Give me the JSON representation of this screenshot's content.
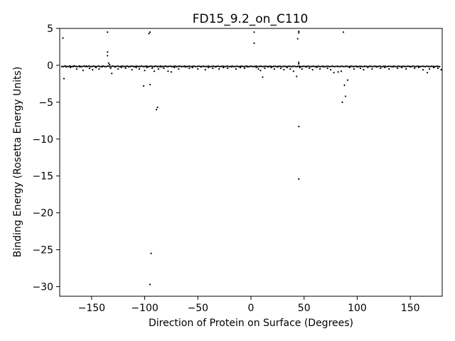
{
  "chart_data": {
    "type": "scatter",
    "title": "FD15_9.2_on_C110",
    "xlabel": "Direction of Protein on Surface (Degrees)",
    "ylabel": "Binding Energy (Rosetta Energy Units)",
    "xlim": [
      -180,
      180
    ],
    "ylim": [
      -31.3,
      5.0
    ],
    "xticks": [
      -150,
      -100,
      -50,
      0,
      50,
      100,
      150
    ],
    "yticks": [
      5,
      0,
      -5,
      -10,
      -15,
      -20,
      -25,
      -30
    ],
    "grid": false,
    "legend": "none",
    "marker_color": "#000000",
    "series": [
      {
        "points": [
          [
            -177,
            3.7
          ],
          [
            -176,
            -1.8
          ],
          [
            -174,
            -0.2
          ],
          [
            -170,
            -0.3
          ],
          [
            -167,
            -0.1
          ],
          [
            -164,
            -0.5
          ],
          [
            -161,
            -0.2
          ],
          [
            -158,
            -0.7
          ],
          [
            -155,
            -0.1
          ],
          [
            -152,
            -0.4
          ],
          [
            -149,
            -0.6
          ],
          [
            -146,
            -0.3
          ],
          [
            -143,
            -0.5
          ],
          [
            -140,
            -0.2
          ],
          [
            -135,
            4.5
          ],
          [
            -135,
            1.8
          ],
          [
            -135,
            1.3
          ],
          [
            -134,
            0.3
          ],
          [
            -133,
            0.1
          ],
          [
            -132,
            -0.4
          ],
          [
            -131,
            -1.1
          ],
          [
            -128,
            -0.2
          ],
          [
            -125,
            -0.5
          ],
          [
            -122,
            -0.3
          ],
          [
            -118,
            -0.4
          ],
          [
            -115,
            -0.2
          ],
          [
            -112,
            -0.6
          ],
          [
            -108,
            -0.3
          ],
          [
            -105,
            -0.5
          ],
          [
            -101,
            -2.8
          ],
          [
            -100,
            -0.7
          ],
          [
            -98,
            -0.3
          ],
          [
            -96,
            4.3
          ],
          [
            -95,
            4.5
          ],
          [
            -95,
            -2.6
          ],
          [
            -94,
            -25.5
          ],
          [
            -95,
            -29.7
          ],
          [
            -93,
            -0.4
          ],
          [
            -91,
            -0.8
          ],
          [
            -89,
            -6.0
          ],
          [
            -88,
            -5.7
          ],
          [
            -87,
            -0.5
          ],
          [
            -85,
            -0.2
          ],
          [
            -82,
            -0.4
          ],
          [
            -78,
            -0.8
          ],
          [
            -75,
            -0.9
          ],
          [
            -72,
            -0.3
          ],
          [
            -68,
            -0.5
          ],
          [
            -62,
            -0.2
          ],
          [
            -58,
            -0.4
          ],
          [
            -55,
            -0.3
          ],
          [
            -50,
            -0.5
          ],
          [
            -47,
            -0.2
          ],
          [
            -43,
            -0.6
          ],
          [
            -40,
            -0.3
          ],
          [
            -36,
            -0.4
          ],
          [
            -33,
            -0.2
          ],
          [
            -30,
            -0.5
          ],
          [
            -26,
            -0.3
          ],
          [
            -22,
            -0.4
          ],
          [
            -18,
            -0.2
          ],
          [
            -14,
            -0.5
          ],
          [
            -10,
            -0.3
          ],
          [
            -6,
            -0.4
          ],
          [
            -3,
            -0.2
          ],
          [
            3,
            4.5
          ],
          [
            3,
            3.0
          ],
          [
            5,
            -0.3
          ],
          [
            7,
            -0.5
          ],
          [
            9,
            -0.7
          ],
          [
            11,
            -1.6
          ],
          [
            13,
            -0.4
          ],
          [
            16,
            -0.2
          ],
          [
            19,
            -0.3
          ],
          [
            22,
            -0.5
          ],
          [
            25,
            -0.2
          ],
          [
            28,
            -0.4
          ],
          [
            31,
            -0.6
          ],
          [
            34,
            -0.3
          ],
          [
            37,
            -0.5
          ],
          [
            40,
            -0.8
          ],
          [
            43,
            -1.5
          ],
          [
            44,
            3.6
          ],
          [
            45,
            4.4
          ],
          [
            45,
            4.6
          ],
          [
            45,
            0.4
          ],
          [
            45,
            0.2
          ],
          [
            45,
            -8.3
          ],
          [
            45,
            -15.4
          ],
          [
            46,
            -0.3
          ],
          [
            48,
            -0.5
          ],
          [
            52,
            -0.2
          ],
          [
            55,
            -0.4
          ],
          [
            58,
            -0.6
          ],
          [
            62,
            -0.3
          ],
          [
            65,
            -0.5
          ],
          [
            68,
            -0.2
          ],
          [
            72,
            -0.4
          ],
          [
            75,
            -0.6
          ],
          [
            78,
            -1.0
          ],
          [
            82,
            -0.9
          ],
          [
            85,
            -0.8
          ],
          [
            86,
            -5.0
          ],
          [
            87,
            4.5
          ],
          [
            88,
            -2.7
          ],
          [
            89,
            -4.2
          ],
          [
            91,
            -2.0
          ],
          [
            93,
            -0.3
          ],
          [
            97,
            -0.5
          ],
          [
            100,
            -0.2
          ],
          [
            103,
            -0.4
          ],
          [
            106,
            -0.6
          ],
          [
            110,
            -0.3
          ],
          [
            114,
            -0.5
          ],
          [
            118,
            -0.2
          ],
          [
            122,
            -0.4
          ],
          [
            126,
            -0.3
          ],
          [
            130,
            -0.5
          ],
          [
            134,
            -0.2
          ],
          [
            138,
            -0.4
          ],
          [
            142,
            -0.3
          ],
          [
            146,
            -0.5
          ],
          [
            150,
            -0.2
          ],
          [
            154,
            -0.4
          ],
          [
            158,
            -0.3
          ],
          [
            162,
            -0.6
          ],
          [
            166,
            -1.0
          ],
          [
            168,
            -0.5
          ],
          [
            172,
            -0.3
          ],
          [
            176,
            -0.4
          ],
          [
            179,
            -0.6
          ]
        ]
      }
    ]
  }
}
